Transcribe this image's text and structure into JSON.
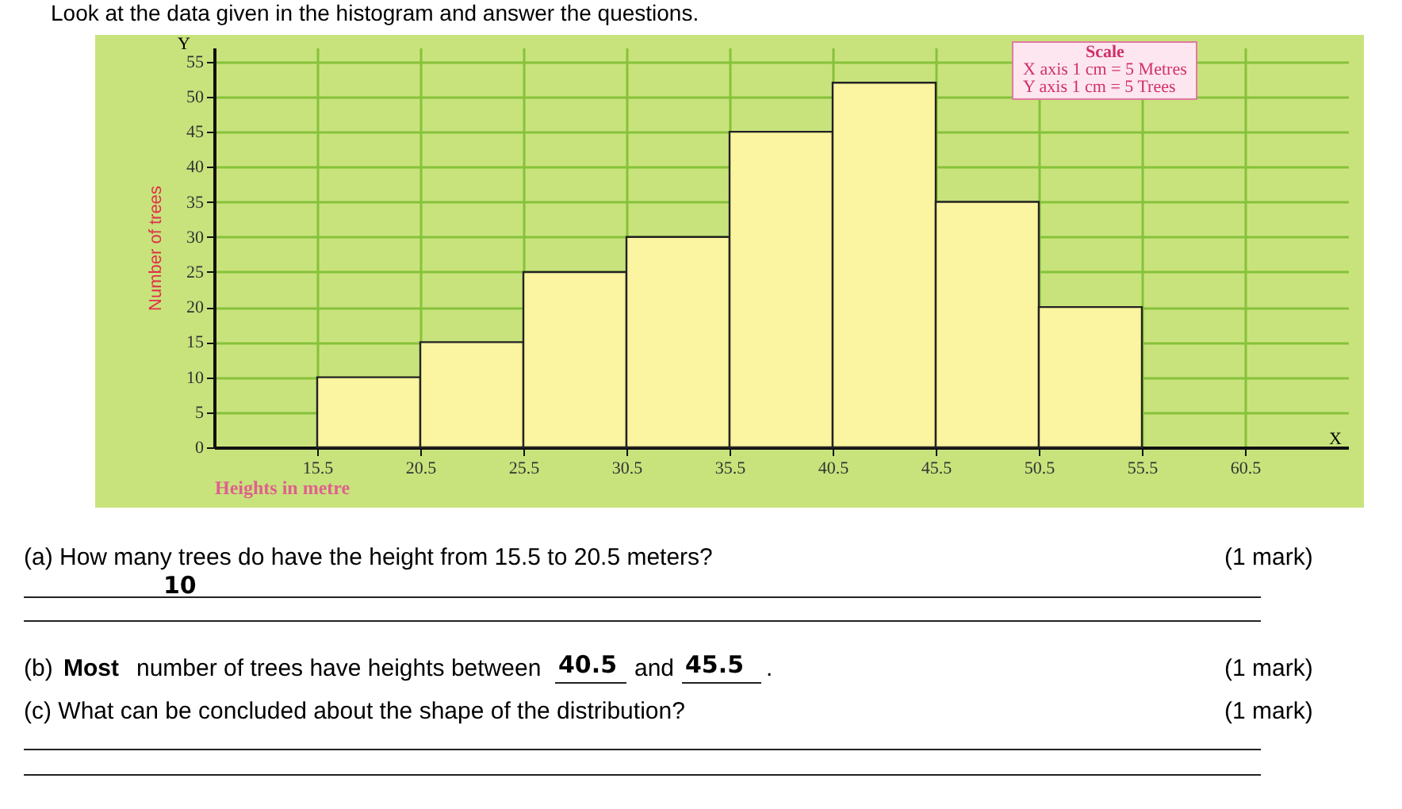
{
  "chart_data": {
    "type": "histogram",
    "title": "Look at the data given in the histogram and answer the questions.",
    "xlabel": "Heights in metre",
    "ylabel": "Number of trees",
    "bins": [
      15.5,
      20.5,
      25.5,
      30.5,
      35.5,
      40.5,
      45.5,
      50.5,
      55.5
    ],
    "values": [
      10,
      15,
      25,
      30,
      45,
      52,
      35,
      20
    ],
    "color": "#fbf4a0",
    "xlim": [
      10.5,
      65.5
    ],
    "xticks": [
      15.5,
      20.5,
      25.5,
      30.5,
      35.5,
      40.5,
      45.5,
      50.5,
      55.5,
      60.5
    ],
    "ylim": [
      0,
      57
    ],
    "yticks": [
      0,
      5,
      10,
      15,
      20,
      25,
      30,
      35,
      40,
      45,
      50,
      55
    ],
    "grid": true,
    "annotations": [
      "Y",
      "X",
      "Scale",
      "X axis 1 cm = 5 Metres",
      "Y axis 1 cm = 5 Trees",
      "(a) How many trees do have the height from 15.5 to 20.5 meters?",
      "(1 mark)",
      "10",
      "(b)",
      "Most",
      "number of trees have heights between",
      "40.5",
      "and",
      "45.5",
      ".",
      "(1 mark)",
      "(c) What can be concluded about the shape of the distribution?",
      "(1 mark)"
    ]
  }
}
